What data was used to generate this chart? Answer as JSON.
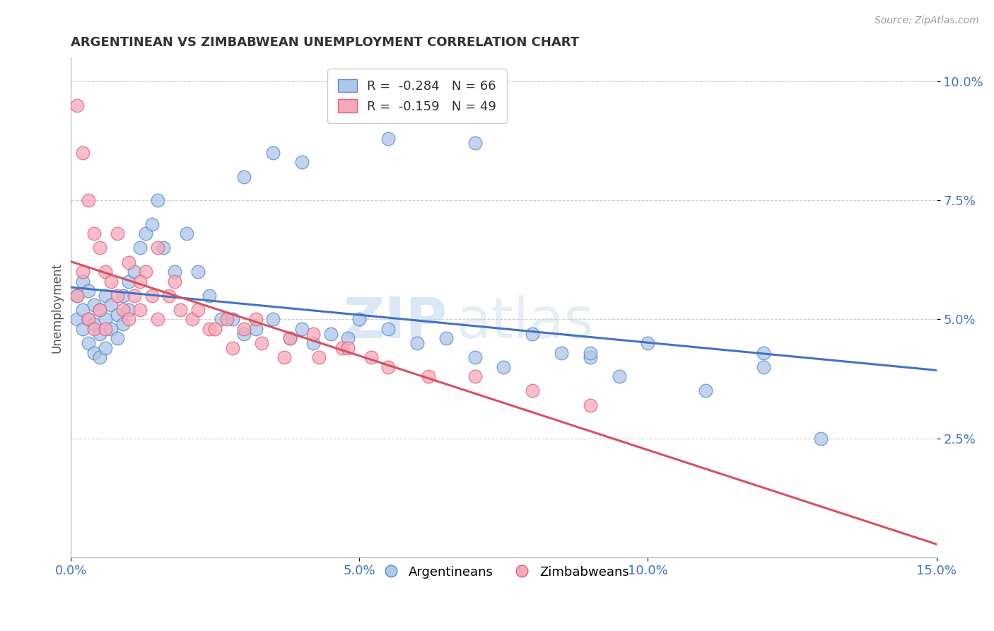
{
  "title": "ARGENTINEAN VS ZIMBABWEAN UNEMPLOYMENT CORRELATION CHART",
  "source": "Source: ZipAtlas.com",
  "ylabel": "Unemployment",
  "xlim": [
    0.0,
    0.15
  ],
  "ylim": [
    0.0,
    0.105
  ],
  "xticks": [
    0.0,
    0.05,
    0.1,
    0.15
  ],
  "xtick_labels": [
    "0.0%",
    "5.0%",
    "10.0%",
    "15.0%"
  ],
  "yticks": [
    0.025,
    0.05,
    0.075,
    0.1
  ],
  "ytick_labels": [
    "2.5%",
    "5.0%",
    "7.5%",
    "10.0%"
  ],
  "argentineans_x": [
    0.001,
    0.001,
    0.002,
    0.002,
    0.002,
    0.003,
    0.003,
    0.003,
    0.004,
    0.004,
    0.004,
    0.005,
    0.005,
    0.005,
    0.006,
    0.006,
    0.006,
    0.007,
    0.007,
    0.008,
    0.008,
    0.009,
    0.009,
    0.01,
    0.01,
    0.011,
    0.012,
    0.013,
    0.014,
    0.015,
    0.016,
    0.018,
    0.02,
    0.022,
    0.024,
    0.026,
    0.028,
    0.03,
    0.032,
    0.035,
    0.038,
    0.04,
    0.042,
    0.045,
    0.048,
    0.05,
    0.055,
    0.06,
    0.065,
    0.07,
    0.075,
    0.08,
    0.085,
    0.09,
    0.095,
    0.1,
    0.11,
    0.12,
    0.13,
    0.03,
    0.035,
    0.04,
    0.055,
    0.07,
    0.09,
    0.12
  ],
  "argentineans_y": [
    0.055,
    0.05,
    0.058,
    0.052,
    0.048,
    0.056,
    0.05,
    0.045,
    0.053,
    0.049,
    0.043,
    0.052,
    0.047,
    0.042,
    0.055,
    0.05,
    0.044,
    0.048,
    0.053,
    0.046,
    0.051,
    0.049,
    0.055,
    0.052,
    0.058,
    0.06,
    0.065,
    0.068,
    0.07,
    0.075,
    0.065,
    0.06,
    0.068,
    0.06,
    0.055,
    0.05,
    0.05,
    0.047,
    0.048,
    0.05,
    0.046,
    0.048,
    0.045,
    0.047,
    0.046,
    0.05,
    0.048,
    0.045,
    0.046,
    0.042,
    0.04,
    0.047,
    0.043,
    0.042,
    0.038,
    0.045,
    0.035,
    0.04,
    0.025,
    0.08,
    0.085,
    0.083,
    0.088,
    0.087,
    0.043,
    0.043
  ],
  "zimbabweans_x": [
    0.001,
    0.001,
    0.002,
    0.002,
    0.003,
    0.003,
    0.004,
    0.004,
    0.005,
    0.005,
    0.006,
    0.006,
    0.007,
    0.008,
    0.009,
    0.01,
    0.011,
    0.012,
    0.013,
    0.014,
    0.015,
    0.017,
    0.019,
    0.021,
    0.024,
    0.027,
    0.03,
    0.033,
    0.037,
    0.042,
    0.047,
    0.052,
    0.008,
    0.01,
    0.012,
    0.015,
    0.018,
    0.022,
    0.025,
    0.028,
    0.032,
    0.038,
    0.043,
    0.048,
    0.055,
    0.062,
    0.07,
    0.08,
    0.09
  ],
  "zimbabweans_y": [
    0.095,
    0.055,
    0.085,
    0.06,
    0.075,
    0.05,
    0.068,
    0.048,
    0.065,
    0.052,
    0.06,
    0.048,
    0.058,
    0.055,
    0.052,
    0.05,
    0.055,
    0.052,
    0.06,
    0.055,
    0.05,
    0.055,
    0.052,
    0.05,
    0.048,
    0.05,
    0.048,
    0.045,
    0.042,
    0.047,
    0.044,
    0.042,
    0.068,
    0.062,
    0.058,
    0.065,
    0.058,
    0.052,
    0.048,
    0.044,
    0.05,
    0.046,
    0.042,
    0.044,
    0.04,
    0.038,
    0.038,
    0.035,
    0.032
  ],
  "blue_fill": "#aec6e8",
  "blue_edge": "#5b8cc8",
  "pink_fill": "#f5a8b8",
  "pink_edge": "#e06080",
  "blue_line": "#4472c4",
  "pink_line": "#d95060",
  "legend_label_blue": "Argentineans",
  "legend_label_pink": "Zimbabweans",
  "watermark_zip": "ZIP",
  "watermark_atlas": "atlas",
  "background_color": "#ffffff",
  "grid_color": "#cccccc"
}
